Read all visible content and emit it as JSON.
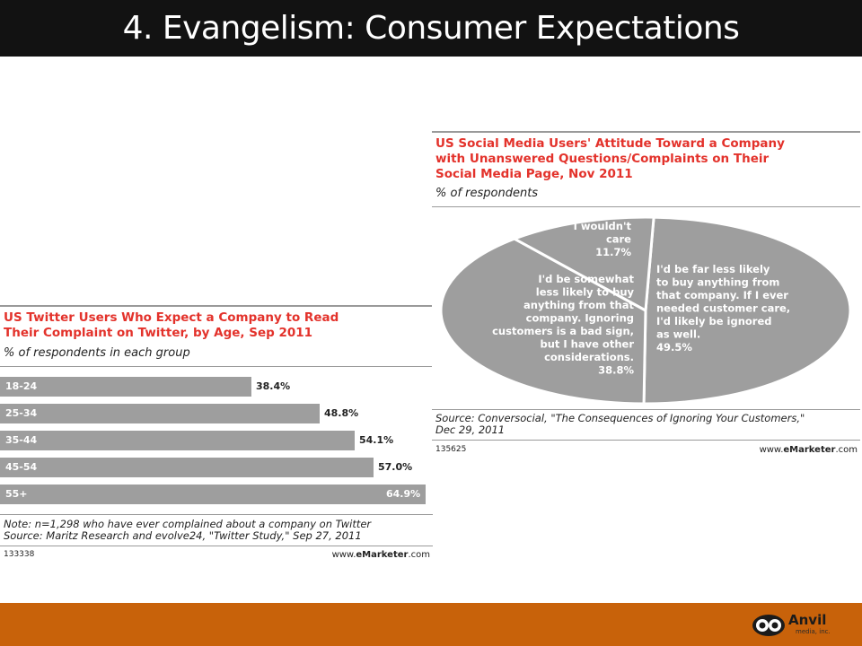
{
  "slide": {
    "title": "4. Evangelism: Consumer Expectations",
    "logo_name": "Anvil",
    "logo_sub": "media, inc."
  },
  "colors": {
    "header_bg": "#121212",
    "footer_bg": "#c8620a",
    "title_red": "#e3322b",
    "bar_gray": "#9e9e9e",
    "pie_gray": "#9e9e9e"
  },
  "chart_data": [
    {
      "type": "bar",
      "orientation": "horizontal",
      "title": "US Twitter Users Who Expect a Company to Read Their Complaint on Twitter, by Age, Sep 2011",
      "title_lines": [
        "US Twitter Users Who Expect a Company to Read",
        "Their Complaint on Twitter, by Age, Sep 2011"
      ],
      "subtitle": "% of respondents in each group",
      "categories": [
        "18-24",
        "25-34",
        "35-44",
        "45-54",
        "55+"
      ],
      "values": [
        38.4,
        48.8,
        54.1,
        57.0,
        64.9
      ],
      "value_labels": [
        "38.4%",
        "48.8%",
        "54.1%",
        "57.0%",
        "64.9%"
      ],
      "xlim": [
        0,
        64.9
      ],
      "grid": false,
      "note_lines": [
        "Note: n=1,298 who have ever complained about a company on Twitter",
        "Source: Maritz Research and evolve24, \"Twitter Study,\" Sep 27, 2011"
      ],
      "code": "133338",
      "brand_prefix": "www.",
      "brand_bold": "eMarketer",
      "brand_suffix": ".com"
    },
    {
      "type": "pie",
      "title": "US Social Media Users' Attitude Toward a Company with Unanswered Questions/Complaints on Their Social Media Page, Nov 2011",
      "title_lines": [
        "US Social Media Users' Attitude Toward a Company",
        "with Unanswered Questions/Complaints on Their",
        "Social Media Page, Nov 2011"
      ],
      "subtitle": "% of respondents",
      "slices": [
        {
          "label_lines": [
            "I'd be far less likely",
            "to buy anything from",
            "that company. If I ever",
            "needed customer care,",
            "I'd likely be ignored",
            "as well."
          ],
          "value": 49.5,
          "value_label": "49.5%"
        },
        {
          "label_lines": [
            "I'd be somewhat",
            "less likely to buy",
            "anything from that",
            "company. Ignoring",
            "customers is a bad sign,",
            "but I have other",
            "considerations."
          ],
          "value": 38.8,
          "value_label": "38.8%"
        },
        {
          "label_lines": [
            "I wouldn't",
            "care"
          ],
          "value": 11.7,
          "value_label": "11.7%"
        }
      ],
      "source_lines": [
        "Source: Conversocial, \"The Consequences of Ignoring Your Customers,\"",
        "Dec 29, 2011"
      ],
      "code": "135625",
      "brand_prefix": "www.",
      "brand_bold": "eMarketer",
      "brand_suffix": ".com"
    }
  ]
}
